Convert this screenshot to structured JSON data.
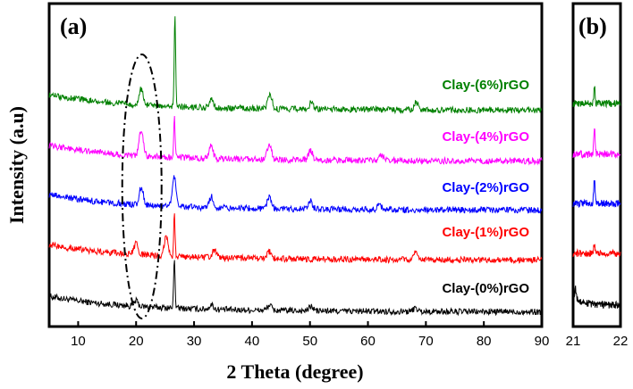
{
  "chart_data": [
    {
      "panel": "(a)",
      "type": "line",
      "xlabel": "2 Theta (degree)",
      "ylabel": "Intensity (a.u)",
      "xlim": [
        5,
        90
      ],
      "xticks": [
        10,
        20,
        30,
        40,
        50,
        60,
        70,
        80,
        90
      ],
      "yticks": [],
      "annotation": "dash-dot ellipse around 2θ ≈ 21°",
      "series": [
        {
          "name": "Clay-(0%)rGO",
          "color": "#000000",
          "offset": 0,
          "peaks": [
            {
              "x": 20.0,
              "h": 6
            },
            {
              "x": 26.6,
              "h": 58
            },
            {
              "x": 33.0,
              "h": 5
            },
            {
              "x": 43.0,
              "h": 6
            },
            {
              "x": 50.2,
              "h": 5
            },
            {
              "x": 68.2,
              "h": 4
            }
          ]
        },
        {
          "name": "Clay-(1%)rGO",
          "color": "#ff0000",
          "offset": 1,
          "peaks": [
            {
              "x": 20.0,
              "h": 12
            },
            {
              "x": 25.2,
              "h": 22
            },
            {
              "x": 26.6,
              "h": 48
            },
            {
              "x": 33.5,
              "h": 8
            },
            {
              "x": 43.0,
              "h": 8
            },
            {
              "x": 68.3,
              "h": 9
            }
          ]
        },
        {
          "name": "Clay-(2%)rGO",
          "color": "#0000ff",
          "offset": 2,
          "peaks": [
            {
              "x": 20.9,
              "h": 20
            },
            {
              "x": 26.6,
              "h": 32
            },
            {
              "x": 33.0,
              "h": 12
            },
            {
              "x": 43.0,
              "h": 14
            },
            {
              "x": 50.1,
              "h": 9
            },
            {
              "x": 62.0,
              "h": 5
            }
          ]
        },
        {
          "name": "Clay-(4%)rGO",
          "color": "#ff00ff",
          "offset": 3,
          "peaks": [
            {
              "x": 20.9,
              "h": 30
            },
            {
              "x": 26.6,
              "h": 45
            },
            {
              "x": 32.9,
              "h": 14
            },
            {
              "x": 43.0,
              "h": 18
            },
            {
              "x": 50.1,
              "h": 11
            },
            {
              "x": 62.3,
              "h": 7
            }
          ]
        },
        {
          "name": "Clay-(6%)rGO",
          "color": "#008000",
          "offset": 4,
          "peaks": [
            {
              "x": 20.9,
              "h": 18
            },
            {
              "x": 26.7,
              "h": 105
            },
            {
              "x": 33.0,
              "h": 10
            },
            {
              "x": 43.1,
              "h": 16
            },
            {
              "x": 50.2,
              "h": 7
            },
            {
              "x": 68.3,
              "h": 8
            }
          ]
        }
      ]
    },
    {
      "panel": "(b)",
      "type": "line",
      "xlim": [
        21,
        22
      ],
      "xticks": [
        21,
        22
      ],
      "series": [
        {
          "name": "Clay-(0%)rGO",
          "color": "#000000",
          "peak_x": 21.05,
          "peak_h": 10
        },
        {
          "name": "Clay-(1%)rGO",
          "color": "#ff0000",
          "peak_x": 21.45,
          "peak_h": 12
        },
        {
          "name": "Clay-(2%)rGO",
          "color": "#0000ff",
          "peak_x": 21.45,
          "peak_h": 28
        },
        {
          "name": "Clay-(4%)rGO",
          "color": "#ff00ff",
          "peak_x": 21.45,
          "peak_h": 30
        },
        {
          "name": "Clay-(6%)rGO",
          "color": "#008000",
          "peak_x": 21.45,
          "peak_h": 18
        }
      ]
    }
  ]
}
